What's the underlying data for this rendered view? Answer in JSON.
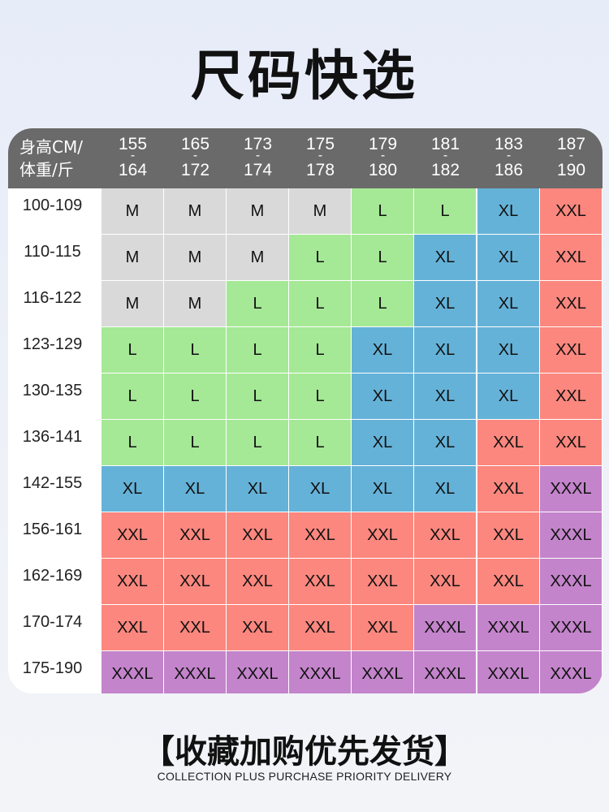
{
  "title": "尺码快选",
  "table": {
    "corner_line1": "身高CM/",
    "corner_line2": "体重/斤",
    "height_columns": [
      {
        "from": "155",
        "dash": "-",
        "to": "164"
      },
      {
        "from": "165",
        "dash": "-",
        "to": "172"
      },
      {
        "from": "173",
        "dash": "-",
        "to": "174"
      },
      {
        "from": "175",
        "dash": "-",
        "to": "178"
      },
      {
        "from": "179",
        "dash": "-",
        "to": "180"
      },
      {
        "from": "181",
        "dash": "-",
        "to": "182"
      },
      {
        "from": "183",
        "dash": "-",
        "to": "186"
      },
      {
        "from": "187",
        "dash": "-",
        "to": "190"
      }
    ],
    "rows": [
      {
        "weight": "100-109",
        "sizes": [
          "M",
          "M",
          "M",
          "M",
          "L",
          "L",
          "XL",
          "XXL"
        ]
      },
      {
        "weight": "110-115",
        "sizes": [
          "M",
          "M",
          "M",
          "L",
          "L",
          "XL",
          "XL",
          "XXL"
        ]
      },
      {
        "weight": "116-122",
        "sizes": [
          "M",
          "M",
          "L",
          "L",
          "L",
          "XL",
          "XL",
          "XXL"
        ]
      },
      {
        "weight": "123-129",
        "sizes": [
          "L",
          "L",
          "L",
          "L",
          "XL",
          "XL",
          "XL",
          "XXL"
        ]
      },
      {
        "weight": "130-135",
        "sizes": [
          "L",
          "L",
          "L",
          "L",
          "XL",
          "XL",
          "XL",
          "XXL"
        ]
      },
      {
        "weight": "136-141",
        "sizes": [
          "L",
          "L",
          "L",
          "L",
          "XL",
          "XL",
          "XXL",
          "XXL"
        ]
      },
      {
        "weight": "142-155",
        "sizes": [
          "XL",
          "XL",
          "XL",
          "XL",
          "XL",
          "XL",
          "XXL",
          "XXXL"
        ]
      },
      {
        "weight": "156-161",
        "sizes": [
          "XXL",
          "XXL",
          "XXL",
          "XXL",
          "XXL",
          "XXL",
          "XXL",
          "XXXL"
        ]
      },
      {
        "weight": "162-169",
        "sizes": [
          "XXL",
          "XXL",
          "XXL",
          "XXL",
          "XXL",
          "XXL",
          "XXL",
          "XXXL"
        ]
      },
      {
        "weight": "170-174",
        "sizes": [
          "XXL",
          "XXL",
          "XXL",
          "XXL",
          "XXL",
          "XXXL",
          "XXXL",
          "XXXL"
        ]
      },
      {
        "weight": "175-190",
        "sizes": [
          "XXXL",
          "XXXL",
          "XXXL",
          "XXXL",
          "XXXL",
          "XXXL",
          "XXXL",
          "XXXL"
        ]
      }
    ],
    "size_colors": {
      "M": "#d9d9d9",
      "L": "#a5e896",
      "XL": "#65b2d8",
      "XXL": "#fb877e",
      "XXXL": "#c384cb"
    },
    "header_color": "#6a6a6a"
  },
  "footer": {
    "cn": "【收藏加购优先发货】",
    "en": "COLLECTION PLUS PURCHASE PRIORITY DELIVERY"
  }
}
